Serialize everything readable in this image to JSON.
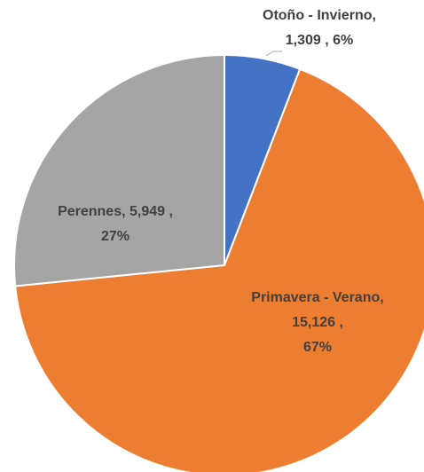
{
  "chart_data": {
    "type": "pie",
    "categories": [
      "Otoño - Invierno",
      "Primavera - Verano",
      "Perennes"
    ],
    "values": [
      1309,
      15126,
      5949
    ],
    "value_labels": [
      "1,309",
      "15,126",
      "5,949"
    ],
    "percents": [
      6,
      67,
      27
    ],
    "percent_labels": [
      "6%",
      "67%",
      "27%"
    ],
    "colors": [
      "#4472c4",
      "#ed7d31",
      "#a5a5a5"
    ]
  }
}
